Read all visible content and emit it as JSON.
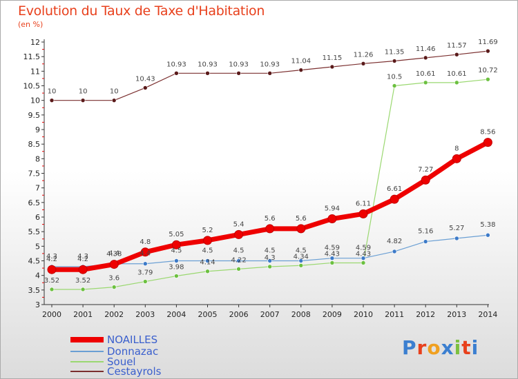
{
  "title": "Evolution du Taux de Taxe d'Habitation",
  "subtitle": "(en %)",
  "logo_text": "Proxiti",
  "colors": {
    "title": "#e8401c",
    "axis": "#333333",
    "grid_red": "#e00000"
  },
  "chart_data": {
    "type": "line",
    "x": [
      2000,
      2001,
      2002,
      2003,
      2004,
      2005,
      2006,
      2007,
      2008,
      2009,
      2010,
      2011,
      2012,
      2013,
      2014
    ],
    "ylim": [
      3,
      12
    ],
    "yticks": [
      3,
      3.5,
      4,
      4.5,
      5,
      5.5,
      6,
      6.5,
      7,
      7.5,
      8,
      8.5,
      9,
      9.5,
      10,
      10.5,
      11,
      11.5,
      12
    ],
    "ytick_labels": [
      "3",
      "3.5",
      "4",
      "4.5",
      "5",
      "5.5",
      "6",
      "6.5",
      "7",
      "7.5",
      "8",
      "8.5",
      "9",
      "9.5",
      "10",
      "10.5",
      "11",
      "11.5",
      "12"
    ],
    "legend_position": "bottom-left",
    "series": [
      {
        "name": "NOAILLES",
        "color": "#ee0000",
        "marker_color": "#ee0000",
        "width": 7,
        "values": [
          4.2,
          4.2,
          4.38,
          4.8,
          5.05,
          5.2,
          5.4,
          5.6,
          5.6,
          5.94,
          6.11,
          6.61,
          7.27,
          8,
          8.56
        ],
        "labels": [
          "4.2",
          "4.2",
          "4.38",
          "4.8",
          "5.05",
          "5.2",
          "5.4",
          "5.6",
          "5.6",
          "5.94",
          "6.11",
          "6.61",
          "7.27",
          "8",
          "8.56"
        ]
      },
      {
        "name": "Donnazac",
        "color": "#6a9fd4",
        "marker_color": "#3c7ac8",
        "width": 1.2,
        "values": [
          4.3,
          4.3,
          4.4,
          4.4,
          4.5,
          4.5,
          4.5,
          4.5,
          4.5,
          4.59,
          4.59,
          4.82,
          5.16,
          5.27,
          5.38
        ],
        "labels": [
          "4.3",
          "4.3",
          "4.4",
          "4.4",
          "4.5",
          "4.5",
          "4.5",
          "4.5",
          "4.5",
          "4.59",
          "4.59",
          "4.82",
          "5.16",
          "5.27",
          "5.38"
        ]
      },
      {
        "name": "Souel",
        "color": "#9ad870",
        "marker_color": "#6cc040",
        "width": 1.2,
        "values": [
          3.52,
          3.52,
          3.6,
          3.79,
          3.98,
          4.14,
          4.22,
          4.3,
          4.34,
          4.43,
          4.43,
          10.5,
          10.61,
          10.61,
          10.72
        ],
        "labels": [
          "3.52",
          "3.52",
          "3.6",
          "3.79",
          "3.98",
          "4.14",
          "4.22",
          "4.3",
          "4.34",
          "4.43",
          "4.43",
          "10.5",
          "10.61",
          "10.61",
          "10.72"
        ]
      },
      {
        "name": "Cestayrols",
        "color": "#7a2e2e",
        "marker_color": "#5a1a1a",
        "width": 1.2,
        "values": [
          10,
          10,
          10,
          10.43,
          10.93,
          10.93,
          10.93,
          10.93,
          11.04,
          11.15,
          11.26,
          11.35,
          11.46,
          11.57,
          11.69
        ],
        "labels": [
          "10",
          "10",
          "10",
          "10.43",
          "10.93",
          "10.93",
          "10.93",
          "10.93",
          "11.04",
          "11.15",
          "11.26",
          "11.35",
          "11.46",
          "11.57",
          "11.69"
        ]
      }
    ]
  }
}
